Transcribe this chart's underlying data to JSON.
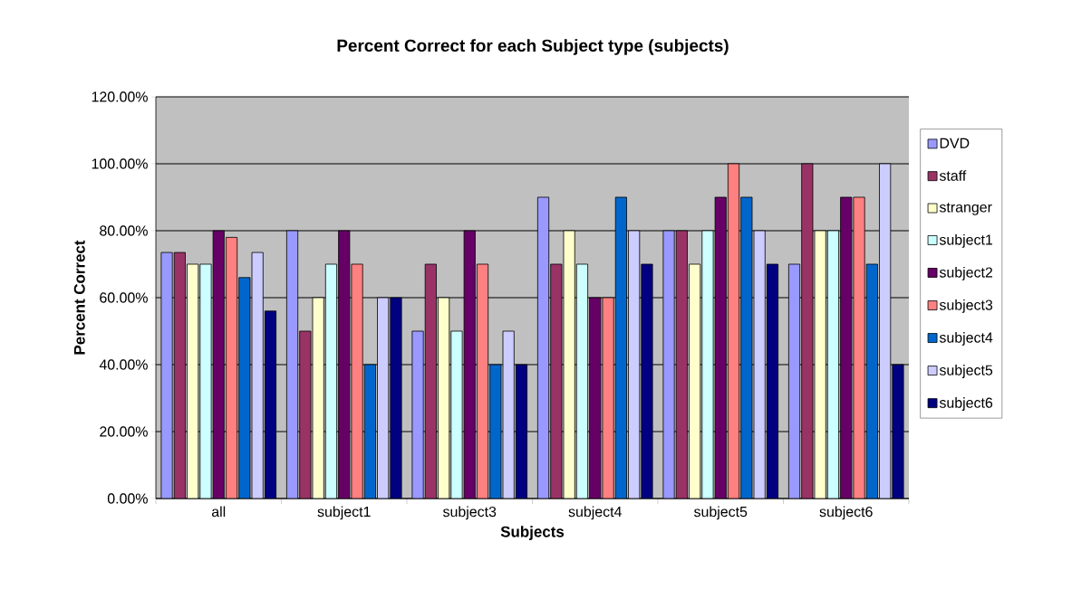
{
  "chart_data": {
    "type": "bar",
    "title": "Percent Correct for each Subject type (subjects)",
    "xlabel": "Subjects",
    "ylabel": "Percent Correct",
    "categories": [
      "all",
      "subject1",
      "subject3",
      "subject4",
      "subject5",
      "subject6"
    ],
    "series": [
      {
        "name": "DVD",
        "color": "#9999ff",
        "values": [
          73.5,
          80,
          50,
          90,
          80,
          70
        ]
      },
      {
        "name": "staff",
        "color": "#993366",
        "values": [
          73.5,
          50,
          70,
          70,
          80,
          100
        ]
      },
      {
        "name": "stranger",
        "color": "#ffffcc",
        "values": [
          70,
          60,
          60,
          80,
          70,
          80
        ]
      },
      {
        "name": "subject1",
        "color": "#ccffff",
        "values": [
          70,
          70,
          50,
          70,
          80,
          80
        ]
      },
      {
        "name": "subject2",
        "color": "#660066",
        "values": [
          80,
          80,
          80,
          60,
          90,
          90
        ]
      },
      {
        "name": "subject3",
        "color": "#ff8080",
        "values": [
          78,
          70,
          70,
          60,
          100,
          90
        ]
      },
      {
        "name": "subject4",
        "color": "#0066cc",
        "values": [
          66,
          40,
          40,
          90,
          90,
          70
        ]
      },
      {
        "name": "subject5",
        "color": "#ccccff",
        "values": [
          73.5,
          60,
          50,
          80,
          80,
          100
        ]
      },
      {
        "name": "subject6",
        "color": "#000080",
        "values": [
          56,
          60,
          40,
          70,
          70,
          40
        ]
      }
    ],
    "ylim": [
      0,
      120
    ],
    "yticks": [
      {
        "value": 0,
        "label": "0.00%"
      },
      {
        "value": 20,
        "label": "20.00%"
      },
      {
        "value": 40,
        "label": "40.00%"
      },
      {
        "value": 60,
        "label": "60.00%"
      },
      {
        "value": 80,
        "label": "80.00%"
      },
      {
        "value": 100,
        "label": "100.00%"
      },
      {
        "value": 120,
        "label": "120.00%"
      }
    ],
    "grid": "y",
    "legend": "right"
  }
}
